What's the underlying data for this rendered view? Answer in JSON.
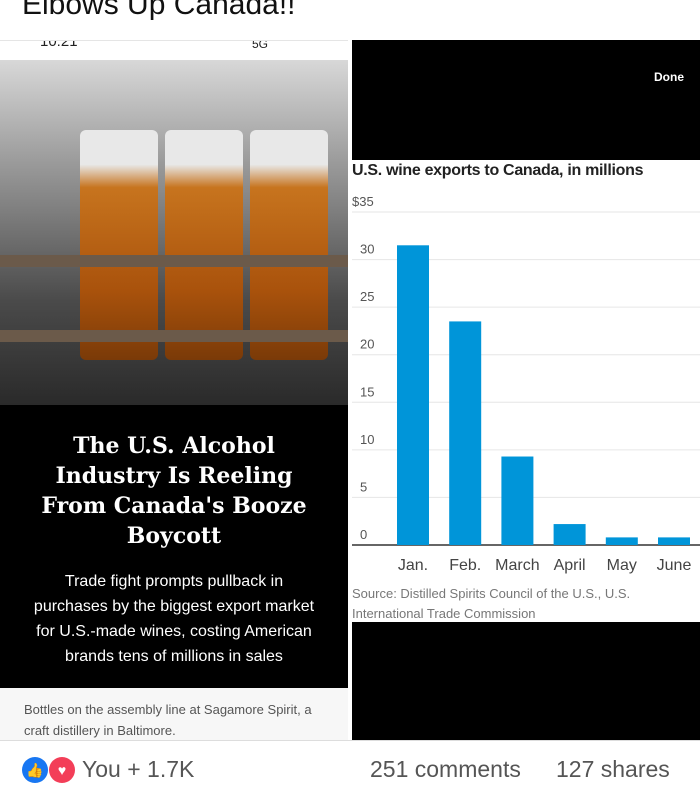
{
  "post": {
    "title": "Elbows Up Canada!!"
  },
  "status_bar": {
    "time": "10:21",
    "indicators": "5G"
  },
  "article": {
    "headline": "The U.S. Alcohol Industry Is Reeling From Canada's Booze Boycott",
    "dek": "Trade fight prompts pullback in purchases by the biggest export market for U.S.-made wines, costing American brands tens of millions in sales",
    "photo_caption": "Bottles on the assembly line at Sagamore Spirit, a craft distillery in Baltimore."
  },
  "viewer": {
    "done_label": "Done"
  },
  "chart_data": {
    "type": "bar",
    "title": "U.S. wine exports to Canada, in millions",
    "categories": [
      "Jan.",
      "Feb.",
      "March",
      "April",
      "May",
      "June"
    ],
    "values": [
      31.5,
      23.5,
      9.3,
      2.2,
      0.8,
      0.8
    ],
    "ylim": [
      0,
      35
    ],
    "yticks": [
      "0",
      "5",
      "10",
      "15",
      "20",
      "25",
      "30",
      "$35"
    ],
    "grid": true,
    "bar_color": "#0095d9",
    "source": "Source: Distilled Spirits Council of the U.S., U.S. International Trade Commission"
  },
  "footer": {
    "reactions": "You + 1.7K",
    "comments": "251 comments",
    "shares": "127 shares",
    "like_color": "#1877f2",
    "love_color": "#f33e58"
  }
}
